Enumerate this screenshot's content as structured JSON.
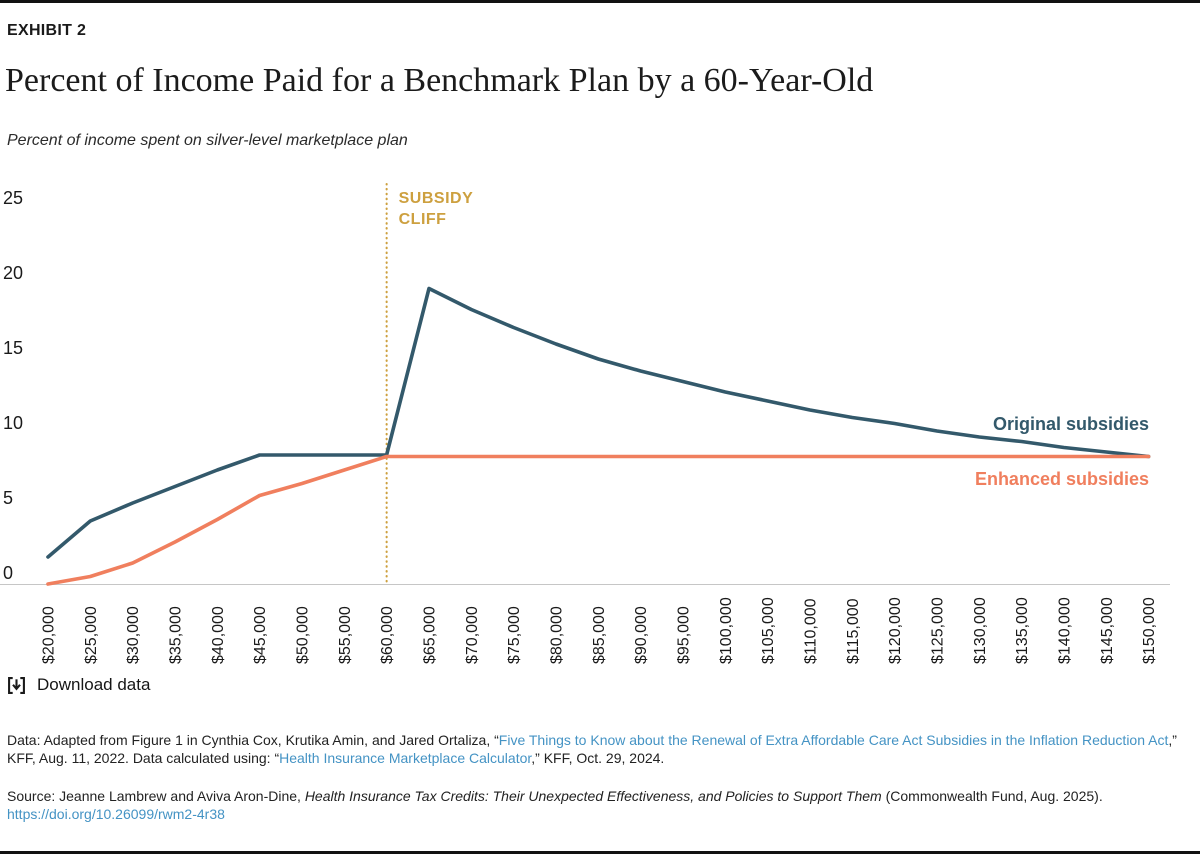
{
  "page": {
    "exhibit_label": "EXHIBIT 2",
    "title": "Percent of Income Paid for a Benchmark Plan by a 60-Year-Old",
    "subtitle": "Percent of income spent on silver-level marketplace plan"
  },
  "colors": {
    "original_series": "#33596B",
    "enhanced_series": "#F07F5E",
    "subsidy_cliff": "#CDA03F",
    "link_blue": "#4493C4",
    "axis_line": "#c6c6c6"
  },
  "chart_data": {
    "type": "line",
    "title": "Percent of Income Paid for a Benchmark Plan by a 60-Year-Old",
    "subtitle": "Percent of income spent on silver-level marketplace plan",
    "xlabel": "",
    "ylabel": "",
    "ylim": [
      0,
      25
    ],
    "y_ticks": [
      "0",
      "5",
      "10",
      "15",
      "20",
      "25"
    ],
    "grid": "off",
    "legend_position": "end-of-line labels, right side",
    "x": [
      20000,
      25000,
      30000,
      35000,
      40000,
      45000,
      50000,
      55000,
      60000,
      65000,
      70000,
      75000,
      80000,
      85000,
      90000,
      95000,
      100000,
      105000,
      110000,
      115000,
      120000,
      125000,
      130000,
      135000,
      140000,
      145000,
      150000
    ],
    "x_tick_labels": [
      "$20,000",
      "$25,000",
      "$30,000",
      "$35,000",
      "$40,000",
      "$45,000",
      "$50,000",
      "$55,000",
      "$60,000",
      "$65,000",
      "$70,000",
      "$75,000",
      "$80,000",
      "$85,000",
      "$90,000",
      "$95,000",
      "$100,000",
      "$105,000",
      "$110,000",
      "$115,000",
      "$120,000",
      "$125,000",
      "$130,000",
      "$135,000",
      "$140,000",
      "$145,000",
      "$150,000"
    ],
    "series": [
      {
        "name": "Original subsidies",
        "color": "#33596B",
        "values": [
          1.8,
          4.2,
          5.4,
          6.5,
          7.6,
          8.6,
          8.6,
          8.6,
          8.6,
          19.7,
          18.3,
          17.1,
          16.0,
          15.0,
          14.2,
          13.5,
          12.8,
          12.2,
          11.6,
          11.1,
          10.7,
          10.2,
          9.8,
          9.5,
          9.1,
          8.8,
          8.5
        ]
      },
      {
        "name": "Enhanced subsidies",
        "color": "#F07F5E",
        "values": [
          0,
          0.5,
          1.4,
          2.8,
          4.3,
          5.9,
          6.7,
          7.6,
          8.5,
          8.5,
          8.5,
          8.5,
          8.5,
          8.5,
          8.5,
          8.5,
          8.5,
          8.5,
          8.5,
          8.5,
          8.5,
          8.5,
          8.5,
          8.5,
          8.5,
          8.5,
          8.5
        ]
      }
    ],
    "annotation": {
      "label_line1": "SUBSIDY",
      "label_line2": "CLIFF",
      "x": 60000,
      "color": "#CDA03F",
      "style": "vertical dotted line"
    }
  },
  "download": {
    "label": "Download data"
  },
  "footer": {
    "data_note": {
      "prefix": "Data: Adapted from Figure 1 in Cynthia Cox, Krutika Amin, and Jared Ortaliza, “",
      "link1": "Five Things to Know about the Renewal of Extra Affordable Care Act Subsidies in the Inflation Reduction Act",
      "mid": ",” KFF, Aug. 11, 2022. Data calculated using: “",
      "link2": "Health Insurance Marketplace Calculator",
      "suffix": ",” KFF, Oct. 29, 2024."
    },
    "source": {
      "prefix": "Source: Jeanne Lambrew and Aviva Aron-Dine, ",
      "italic_title": "Health Insurance Tax Credits: Their Unexpected Effectiveness, and Policies to Support Them",
      "suffix": " (Commonwealth Fund, Aug. 2025).",
      "doi": "https://doi.org/10.26099/rwm2-4r38"
    }
  }
}
